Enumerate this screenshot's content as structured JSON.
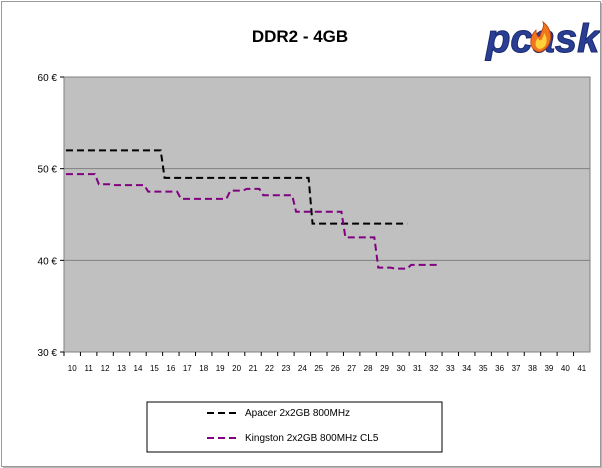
{
  "logo_text": "pcask",
  "chart_data": {
    "type": "line",
    "title": "DDR2 - 4GB",
    "xlabel": "",
    "ylabel": "",
    "x": [
      10,
      11,
      12,
      13,
      14,
      15,
      16,
      17,
      18,
      19,
      20,
      21,
      22,
      23,
      24,
      25,
      26,
      27,
      28,
      29,
      30,
      31,
      32,
      33,
      34,
      35,
      36,
      37,
      38,
      39,
      40,
      41
    ],
    "xlim": [
      10,
      41
    ],
    "ylim": [
      30,
      60
    ],
    "yticks": [
      30,
      40,
      50,
      60
    ],
    "ytick_labels": [
      "30 €",
      "40 €",
      "50 €",
      "60 €"
    ],
    "grid": true,
    "legend_position": "bottom-center",
    "plot_background": "#c0c0c0",
    "series": [
      {
        "name": "Apacer 2x2GB 800MHz",
        "color": "#000000",
        "values": [
          52,
          52,
          52,
          52,
          52,
          52,
          49,
          49,
          49,
          49,
          49,
          49,
          49,
          49,
          49,
          44,
          44,
          44,
          44,
          44,
          44,
          null,
          null,
          null,
          null,
          null,
          null,
          null,
          null,
          null,
          null,
          null
        ]
      },
      {
        "name": "Kingston 2x2GB 800MHz CL5",
        "color": "#800080",
        "values": [
          49.4,
          49.4,
          48.3,
          48.2,
          48.2,
          47.5,
          47.5,
          46.7,
          46.7,
          46.7,
          47.6,
          47.8,
          47.1,
          47.1,
          45.3,
          45.3,
          45.3,
          42.5,
          42.5,
          39.2,
          39.1,
          39.5,
          39.5,
          null,
          null,
          null,
          null,
          null,
          null,
          null,
          null,
          null
        ]
      }
    ]
  }
}
